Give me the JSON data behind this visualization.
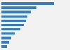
{
  "values": [
    7800,
    5200,
    4400,
    3900,
    3600,
    3300,
    2800,
    2000,
    1500,
    1100,
    800
  ],
  "bar_color": "#3a7dbf",
  "background_color": "#f2f2f2",
  "grid_color": "#e0e0e0",
  "xlim": [
    0,
    10000
  ]
}
